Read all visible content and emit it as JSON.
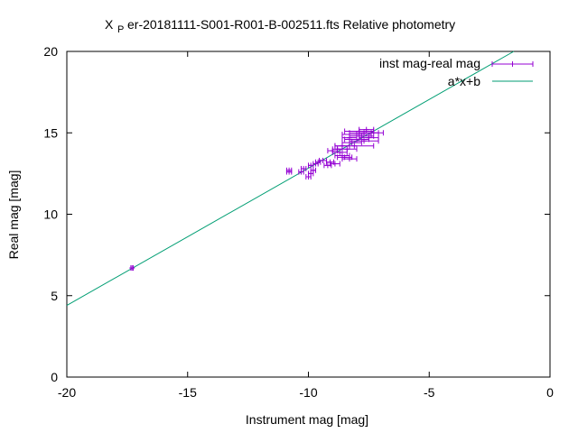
{
  "chart_data": {
    "type": "scatter",
    "title": {
      "symbol": "X",
      "symbol_subscript": "P",
      "text": "er-20181111-S001-R001-B-002511.fts Relative photometry"
    },
    "xlabel": "Instrument mag [mag]",
    "ylabel": "Real mag [mag]",
    "xlim": [
      -20,
      0
    ],
    "ylim": [
      0,
      20
    ],
    "xticks": [
      {
        "value": -20,
        "label": "-20"
      },
      {
        "value": -15,
        "label": "-15"
      },
      {
        "value": -10,
        "label": "-10"
      },
      {
        "value": -5,
        "label": "-5"
      },
      {
        "value": 0,
        "label": "0"
      }
    ],
    "yticks": [
      {
        "value": 0,
        "label": "0"
      },
      {
        "value": 5,
        "label": "5"
      },
      {
        "value": 10,
        "label": "10"
      },
      {
        "value": 15,
        "label": "15"
      },
      {
        "value": 20,
        "label": "20"
      }
    ],
    "grid": false,
    "legend_position": "top-right",
    "series": [
      {
        "name": "inst mag-real mag",
        "kind": "points-with-x-errorbars",
        "color": "#9400d3",
        "points": [
          {
            "x": -17.3,
            "y": 6.7,
            "xerr": 0.05
          },
          {
            "x": -10.8,
            "y": 12.6,
            "xerr": 0.1
          },
          {
            "x": -10.8,
            "y": 12.7,
            "xerr": 0.1
          },
          {
            "x": -10.3,
            "y": 12.6,
            "xerr": 0.1
          },
          {
            "x": -10.2,
            "y": 12.8,
            "xerr": 0.1
          },
          {
            "x": -10.0,
            "y": 12.3,
            "xerr": 0.1
          },
          {
            "x": -9.9,
            "y": 12.5,
            "xerr": 0.1
          },
          {
            "x": -9.9,
            "y": 13.0,
            "xerr": 0.1
          },
          {
            "x": -9.8,
            "y": 12.7,
            "xerr": 0.1
          },
          {
            "x": -9.7,
            "y": 13.1,
            "xerr": 0.1
          },
          {
            "x": -9.6,
            "y": 13.2,
            "xerr": 0.1
          },
          {
            "x": -9.4,
            "y": 13.3,
            "xerr": 0.15
          },
          {
            "x": -9.2,
            "y": 13.0,
            "xerr": 0.15
          },
          {
            "x": -9.1,
            "y": 13.2,
            "xerr": 0.15
          },
          {
            "x": -9.0,
            "y": 13.9,
            "xerr": 0.2
          },
          {
            "x": -8.9,
            "y": 13.1,
            "xerr": 0.2
          },
          {
            "x": -8.8,
            "y": 14.0,
            "xerr": 0.2
          },
          {
            "x": -8.7,
            "y": 13.8,
            "xerr": 0.3
          },
          {
            "x": -8.6,
            "y": 14.2,
            "xerr": 0.3
          },
          {
            "x": -8.6,
            "y": 13.6,
            "xerr": 0.3
          },
          {
            "x": -8.5,
            "y": 13.5,
            "xerr": 0.3
          },
          {
            "x": -8.4,
            "y": 14.0,
            "xerr": 0.4
          },
          {
            "x": -8.3,
            "y": 14.7,
            "xerr": 0.3
          },
          {
            "x": -8.3,
            "y": 13.4,
            "xerr": 0.3
          },
          {
            "x": -8.2,
            "y": 14.4,
            "xerr": 0.4
          },
          {
            "x": -8.1,
            "y": 14.2,
            "xerr": 0.8
          },
          {
            "x": -8.0,
            "y": 14.6,
            "xerr": 0.5
          },
          {
            "x": -8.0,
            "y": 14.9,
            "xerr": 0.6
          },
          {
            "x": -7.9,
            "y": 15.1,
            "xerr": 0.6
          },
          {
            "x": -7.8,
            "y": 14.8,
            "xerr": 0.5
          },
          {
            "x": -7.7,
            "y": 15.0,
            "xerr": 0.6
          },
          {
            "x": -7.7,
            "y": 14.5,
            "xerr": 0.6
          },
          {
            "x": -7.5,
            "y": 14.7,
            "xerr": 0.4
          },
          {
            "x": -7.6,
            "y": 15.2,
            "xerr": 0.3
          },
          {
            "x": -7.4,
            "y": 15.0,
            "xerr": 0.5
          }
        ]
      },
      {
        "name": "a*x+b",
        "kind": "line",
        "color": "#009e73",
        "points": [
          {
            "x": -20,
            "y": 4.4
          },
          {
            "x": -1.5,
            "y": 20.0
          }
        ]
      }
    ]
  }
}
